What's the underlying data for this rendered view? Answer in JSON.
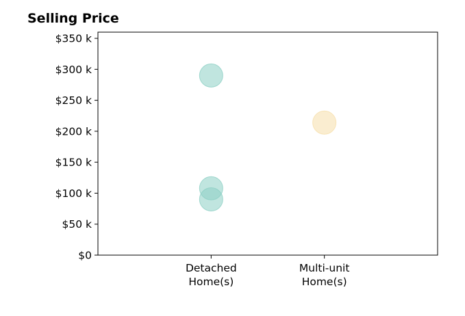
{
  "chart_data": {
    "type": "scatter",
    "title": "Selling Price",
    "xlabel": "",
    "ylabel": "",
    "categories": [
      "Detached\nHome(s)",
      "Multi-unit\nHome(s)"
    ],
    "ylim": [
      0,
      360000
    ],
    "y_ticks": [
      0,
      50000,
      100000,
      150000,
      200000,
      250000,
      300000,
      350000
    ],
    "y_tick_labels": [
      "$0",
      "$50 k",
      "$100 k",
      "$150 k",
      "$200 k",
      "$250 k",
      "$300 k",
      "$350 k"
    ],
    "grid": false,
    "points": [
      {
        "category": "Detached\nHome(s)",
        "value": 290000,
        "color": "#8ccfc4"
      },
      {
        "category": "Detached\nHome(s)",
        "value": 108000,
        "color": "#8ccfc4"
      },
      {
        "category": "Detached\nHome(s)",
        "value": 90000,
        "color": "#8ccfc4"
      },
      {
        "category": "Multi-unit\nHome(s)",
        "value": 214000,
        "color": "#f6dfa9"
      }
    ]
  }
}
